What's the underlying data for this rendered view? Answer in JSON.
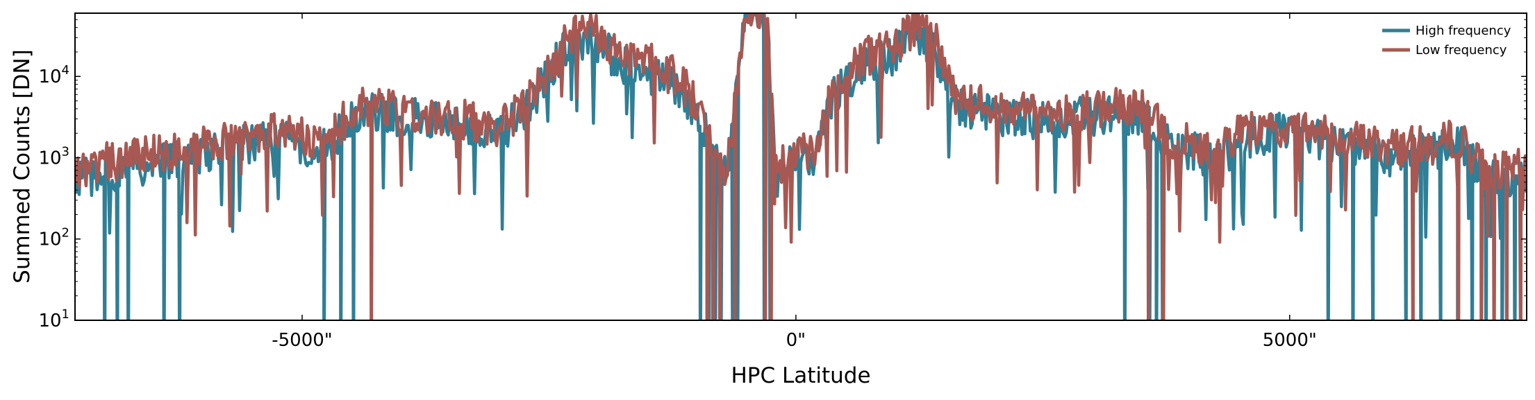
{
  "chart_data": {
    "type": "line",
    "xlabel": "HPC Latitude",
    "ylabel": "Summed Counts [DN]",
    "yscale": "log",
    "xlim": [
      -7300,
      7400
    ],
    "ylim": [
      10,
      60000
    ],
    "x_ticks": [
      {
        "value": -5000,
        "label": "-5000\""
      },
      {
        "value": 0,
        "label": "0\""
      },
      {
        "value": 5000,
        "label": "5000\""
      }
    ],
    "y_ticks": [
      {
        "value": 10,
        "base": "10",
        "exp": "1"
      },
      {
        "value": 100,
        "base": "10",
        "exp": "2"
      },
      {
        "value": 1000,
        "base": "10",
        "exp": "3"
      },
      {
        "value": 10000,
        "base": "10",
        "exp": "4"
      }
    ],
    "grid": false,
    "legend_position": "top-right",
    "series": [
      {
        "name": "High frequency",
        "color": "#2f7f96",
        "envelope": [
          [
            -7300,
            500
          ],
          [
            -6800,
            700
          ],
          [
            -6200,
            900
          ],
          [
            -5800,
            1300
          ],
          [
            -5200,
            1500
          ],
          [
            -4800,
            1200
          ],
          [
            -4400,
            3500
          ],
          [
            -4000,
            3000
          ],
          [
            -3500,
            2500
          ],
          [
            -3000,
            1800
          ],
          [
            -2700,
            3800
          ],
          [
            -2300,
            25000
          ],
          [
            -2000,
            25000
          ],
          [
            -1800,
            14000
          ],
          [
            -1500,
            10000
          ],
          [
            -1200,
            7000
          ],
          [
            -1000,
            3500
          ],
          [
            -800,
            900
          ],
          [
            -700,
            500
          ],
          [
            -500,
            60000
          ],
          [
            -300,
            60000
          ],
          [
            -200,
            500
          ],
          [
            0,
            900
          ],
          [
            200,
            1000
          ],
          [
            400,
            6000
          ],
          [
            700,
            12000
          ],
          [
            1000,
            18000
          ],
          [
            1200,
            30000
          ],
          [
            1400,
            22000
          ],
          [
            1600,
            4500
          ],
          [
            2000,
            3000
          ],
          [
            2500,
            2800
          ],
          [
            3000,
            3000
          ],
          [
            3500,
            3200
          ],
          [
            3800,
            1300
          ],
          [
            4300,
            900
          ],
          [
            4500,
            1600
          ],
          [
            5000,
            2000
          ],
          [
            5500,
            1400
          ],
          [
            6000,
            1000
          ],
          [
            6500,
            1100
          ],
          [
            6700,
            1500
          ],
          [
            7000,
            500
          ],
          [
            7400,
            600
          ]
        ],
        "dropouts": [
          -7000,
          -6870,
          -6760,
          -6400,
          -6240,
          -4780,
          -4610,
          -4480,
          -968,
          -880,
          -818,
          -760,
          -640,
          -590,
          -320,
          -260,
          3330,
          3580,
          3650,
          3715,
          5390,
          5640,
          5845,
          6180,
          6330,
          6530,
          6700,
          6850,
          6990,
          7150,
          7280
        ]
      },
      {
        "name": "Low frequency",
        "color": "#a85852",
        "envelope": [
          [
            -7300,
            700
          ],
          [
            -6800,
            900
          ],
          [
            -6200,
            1200
          ],
          [
            -5800,
            1600
          ],
          [
            -5200,
            1900
          ],
          [
            -4800,
            1500
          ],
          [
            -4400,
            4200
          ],
          [
            -4000,
            3600
          ],
          [
            -3500,
            3100
          ],
          [
            -3000,
            2200
          ],
          [
            -2700,
            4600
          ],
          [
            -2300,
            30000
          ],
          [
            -2000,
            32000
          ],
          [
            -1800,
            20000
          ],
          [
            -1500,
            14000
          ],
          [
            -1200,
            9000
          ],
          [
            -1000,
            4500
          ],
          [
            -800,
            1200
          ],
          [
            -700,
            700
          ],
          [
            -500,
            60000
          ],
          [
            -300,
            60000
          ],
          [
            -200,
            700
          ],
          [
            0,
            1100
          ],
          [
            200,
            1300
          ],
          [
            400,
            7500
          ],
          [
            700,
            16000
          ],
          [
            1000,
            24000
          ],
          [
            1200,
            38000
          ],
          [
            1400,
            28000
          ],
          [
            1600,
            5500
          ],
          [
            2000,
            3600
          ],
          [
            2500,
            3400
          ],
          [
            3000,
            3600
          ],
          [
            3500,
            4000
          ],
          [
            3800,
            1600
          ],
          [
            4300,
            1100
          ],
          [
            4500,
            1900
          ],
          [
            5000,
            2400
          ],
          [
            5500,
            1700
          ],
          [
            6000,
            1300
          ],
          [
            6500,
            1300
          ],
          [
            6700,
            1800
          ],
          [
            7000,
            600
          ],
          [
            7400,
            700
          ]
        ],
        "dropouts": [
          -4300,
          -900,
          -840,
          -770,
          -620,
          -310,
          -250,
          3570,
          3720,
          6250,
          6710,
          6940,
          7070,
          7200,
          7340
        ]
      }
    ]
  }
}
